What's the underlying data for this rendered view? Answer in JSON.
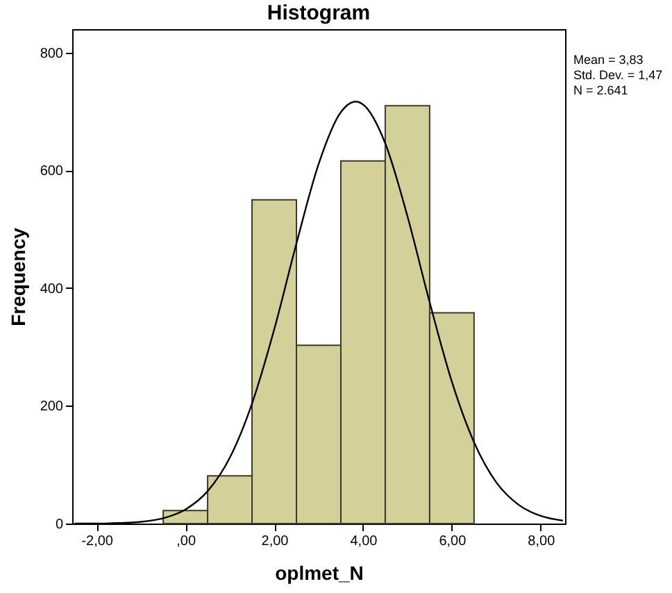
{
  "chart_data": {
    "type": "histogram",
    "title": "Histogram",
    "xlabel": "oplmet_N",
    "ylabel": "Frequency",
    "annotations": [
      "Mean = 3,83",
      "Std. Dev. = 1,47",
      "N = 2.641"
    ],
    "bins": [
      -0.5,
      0.5,
      1.5,
      2.5,
      3.5,
      4.5,
      5.5,
      6.5
    ],
    "series": [
      {
        "color": "#d3d09a",
        "values": [
          22,
          81,
          550,
          303,
          616,
          710,
          358
        ]
      },
      {
        "type": "line",
        "color": "#000000",
        "x": [
          -2.5,
          -2,
          -1.5,
          -1,
          -0.5,
          0,
          0.5,
          1,
          1.5,
          2,
          2.5,
          3,
          3.5,
          3.83,
          4,
          4.5,
          5,
          5.5,
          6,
          6.5,
          7,
          7.5,
          8,
          8.5
        ],
        "values": [
          0,
          0,
          1,
          3,
          9,
          24,
          55,
          112,
          204,
          330,
          476,
          611,
          699,
          717,
          712,
          646,
          522,
          376,
          241,
          138,
          70,
          32,
          13,
          5
        ]
      }
    ],
    "xlim": [
      -2.55,
      8.55
    ],
    "xticks": [
      {
        "value": -2,
        "label": "-2,00"
      },
      {
        "value": 0,
        "label": ",00"
      },
      {
        "value": 2,
        "label": "2,00"
      },
      {
        "value": 4,
        "label": "4,00"
      },
      {
        "value": 6,
        "label": "6,00"
      },
      {
        "value": 8,
        "label": "8,00"
      }
    ],
    "ylim": [
      0,
      840
    ],
    "yticks": [
      0,
      200,
      400,
      600,
      800
    ],
    "grid": false,
    "marker": "none",
    "line_style": "solid"
  }
}
